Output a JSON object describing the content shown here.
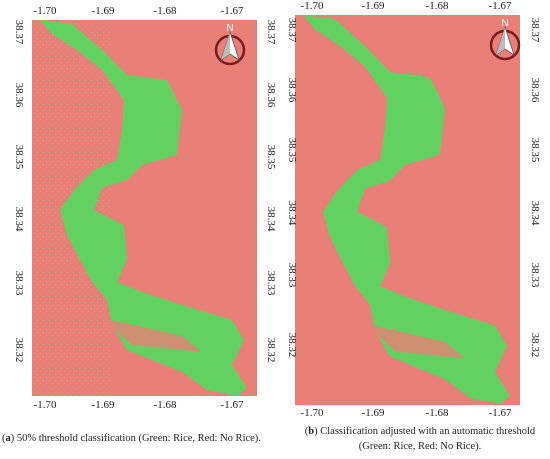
{
  "panels": [
    {
      "x_ticks": [
        "-1.70",
        "-1.69",
        "-1.68",
        "-1.67"
      ],
      "y_ticks": [
        "38.37",
        "38.36",
        "38.35",
        "38.34",
        "38.33",
        "38.32"
      ],
      "north": "N",
      "caption": [
        "(",
        "a",
        ") 50% threshold classification (Green: Rice, Red: No Rice)."
      ]
    },
    {
      "x_ticks": [
        "-1.70",
        "-1.69",
        "-1.68",
        "-1.67"
      ],
      "y_ticks": [
        "38.37",
        "38.36",
        "38.35",
        "38.34",
        "38.33",
        "38.32"
      ],
      "north": "N",
      "caption": [
        "(",
        "b",
        ") Classification adjusted with an automatic threshold"
      ],
      "caption_line2": "(Green: Rice, Red: No Rice)."
    }
  ]
}
